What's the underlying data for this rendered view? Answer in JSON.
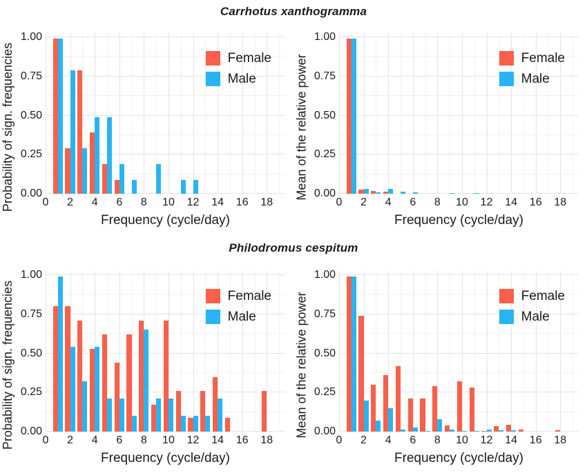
{
  "titles": {
    "top": "Carrhotus xanthogramma",
    "bottom": "Philodromus cespitum"
  },
  "legend": {
    "female_label": "Female",
    "male_label": "Male"
  },
  "colors": {
    "female": "#F8604A",
    "male": "#28B4F4",
    "grid_major": "#e3e3e3",
    "grid_minor": "#f1f1f1",
    "text": "#1a1a1a",
    "background": "#ffffff"
  },
  "axes": {
    "x_label": "Frequency (cycle/day)",
    "x_ticks": [
      0,
      2,
      4,
      6,
      8,
      10,
      12,
      14,
      16,
      18
    ],
    "y_ticks": [
      {
        "label": "1.00",
        "value": 1.0
      },
      {
        "label": "0.75",
        "value": 0.75
      },
      {
        "label": "0.50",
        "value": 0.5
      },
      {
        "label": "0.25",
        "value": 0.25
      },
      {
        "label": "0.00",
        "value": 0.0
      }
    ],
    "x_max": 19.5,
    "y_lim": [
      0,
      1
    ]
  },
  "chart_data": [
    {
      "type": "bar",
      "group_title": "Carrhotus xanthogramma",
      "ylabel": "Probability of sign. frequencies",
      "xlabel": "Frequency (cycle/day)",
      "x": [
        1,
        2,
        3,
        4,
        5,
        6,
        7,
        8,
        9,
        10,
        11,
        12,
        13,
        14,
        15,
        16,
        17,
        18
      ],
      "xlim": [
        0,
        19.5
      ],
      "ylim": [
        0,
        1
      ],
      "grid": true,
      "legend_position": "top-right-inside",
      "series": [
        {
          "name": "Female",
          "values": [
            0.99,
            0.29,
            0.79,
            0.39,
            0.19,
            0.09,
            0,
            0,
            0,
            0,
            0,
            0,
            0,
            0,
            0,
            0,
            0,
            0
          ]
        },
        {
          "name": "Male",
          "values": [
            0.99,
            0.79,
            0.29,
            0.49,
            0.49,
            0.19,
            0.09,
            0,
            0.19,
            0,
            0.09,
            0.09,
            0,
            0,
            0,
            0,
            0,
            0
          ]
        }
      ]
    },
    {
      "type": "bar",
      "group_title": "Carrhotus xanthogramma",
      "ylabel": "Mean of the relative power",
      "xlabel": "Frequency (cycle/day)",
      "x": [
        1,
        2,
        3,
        4,
        5,
        6,
        7,
        8,
        9,
        10,
        11,
        12,
        13,
        14,
        15,
        16,
        17,
        18
      ],
      "xlim": [
        0,
        19.5
      ],
      "ylim": [
        0,
        1
      ],
      "grid": true,
      "legend_position": "top-right-inside",
      "series": [
        {
          "name": "Female",
          "values": [
            0.99,
            0.025,
            0.018,
            0.012,
            0,
            0,
            0,
            0,
            0,
            0,
            0,
            0,
            0,
            0,
            0,
            0,
            0,
            0
          ]
        },
        {
          "name": "Male",
          "values": [
            0.99,
            0.03,
            0.008,
            0.032,
            0.014,
            0.008,
            0,
            0,
            0.004,
            0,
            0.006,
            0,
            0,
            0,
            0,
            0,
            0,
            0
          ]
        }
      ]
    },
    {
      "type": "bar",
      "group_title": "Philodromus cespitum",
      "ylabel": "Probability of sign. frequencies",
      "xlabel": "Frequency (cycle/day)",
      "x": [
        1,
        2,
        3,
        4,
        5,
        6,
        7,
        8,
        9,
        10,
        11,
        12,
        13,
        14,
        15,
        16,
        17,
        18
      ],
      "xlim": [
        0,
        19.5
      ],
      "ylim": [
        0,
        1
      ],
      "grid": true,
      "legend_position": "top-right-inside",
      "series": [
        {
          "name": "Female",
          "values": [
            0.8,
            0.8,
            0.71,
            0.53,
            0.62,
            0.44,
            0.62,
            0.71,
            0.17,
            0.71,
            0.26,
            0.09,
            0.26,
            0.35,
            0.09,
            0,
            0,
            0.26
          ]
        },
        {
          "name": "Male",
          "values": [
            0.99,
            0.54,
            0.32,
            0.54,
            0.21,
            0.21,
            0.1,
            0.65,
            0.21,
            0.21,
            0.1,
            0.1,
            0.1,
            0.21,
            0,
            0,
            0,
            0
          ]
        }
      ]
    },
    {
      "type": "bar",
      "group_title": "Philodromus cespitum",
      "ylabel": "Mean of the relative power",
      "xlabel": "Frequency (cycle/day)",
      "x": [
        1,
        2,
        3,
        4,
        5,
        6,
        7,
        8,
        9,
        10,
        11,
        12,
        13,
        14,
        15,
        16,
        17,
        18
      ],
      "xlim": [
        0,
        19.5
      ],
      "ylim": [
        0,
        1
      ],
      "grid": true,
      "legend_position": "top-right-inside",
      "series": [
        {
          "name": "Female",
          "values": [
            0.99,
            0.74,
            0.3,
            0.36,
            0.42,
            0.21,
            0.21,
            0.29,
            0.04,
            0.32,
            0.28,
            0.005,
            0.035,
            0.045,
            0.012,
            0,
            0,
            0.01
          ]
        },
        {
          "name": "Male",
          "values": [
            0.99,
            0.2,
            0.07,
            0.15,
            0.015,
            0.025,
            0.005,
            0.08,
            0.015,
            0.006,
            0.005,
            0.015,
            0.007,
            0.008,
            0,
            0,
            0,
            0
          ]
        }
      ]
    }
  ]
}
